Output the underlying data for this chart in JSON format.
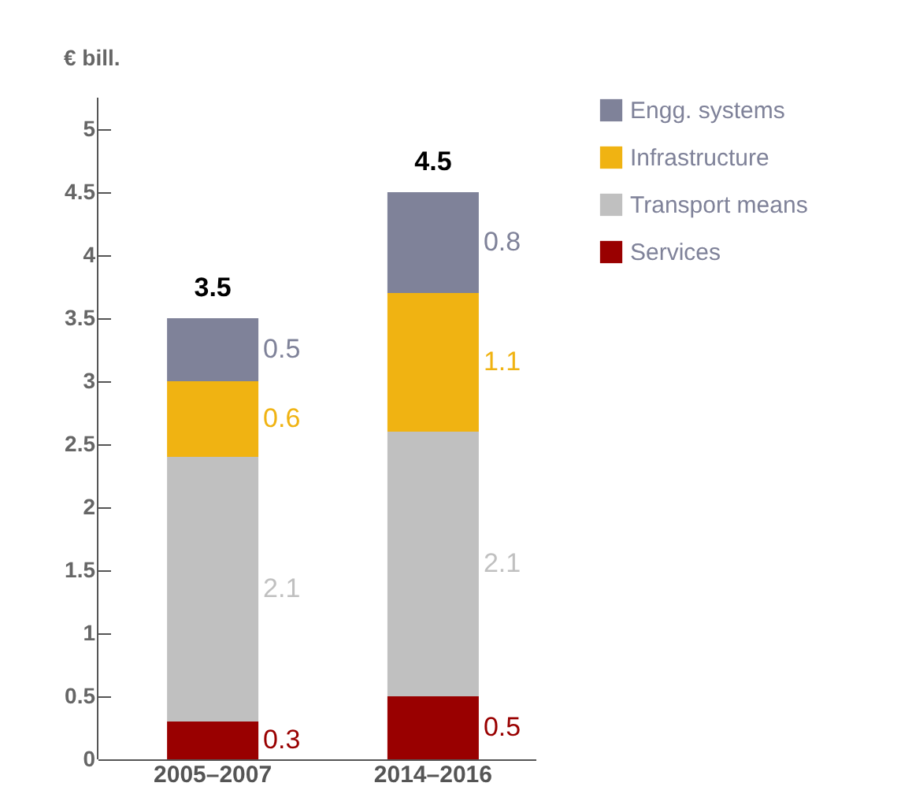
{
  "chart_data": {
    "type": "bar",
    "stacked": true,
    "ylabel": "€ bill.",
    "categories": [
      "2005–2007",
      "2014–2016"
    ],
    "series": [
      {
        "name": "Services",
        "color": "#990000",
        "values": [
          0.3,
          0.5
        ]
      },
      {
        "name": "Transport means",
        "color": "#c0c0c0",
        "values": [
          2.1,
          2.1
        ]
      },
      {
        "name": "Infrastructure",
        "color": "#f0b312",
        "values": [
          0.6,
          1.1
        ]
      },
      {
        "name": "Engg. systems",
        "color": "#7f8299",
        "values": [
          0.5,
          0.8
        ]
      }
    ],
    "totals": [
      "3.5",
      "4.5"
    ],
    "data_labels": true,
    "ylim": [
      0,
      5.25
    ],
    "yticks": [
      0,
      0.5,
      1,
      1.5,
      2,
      2.5,
      3,
      3.5,
      4,
      4.5,
      5
    ],
    "grid": false,
    "legend": "right"
  }
}
